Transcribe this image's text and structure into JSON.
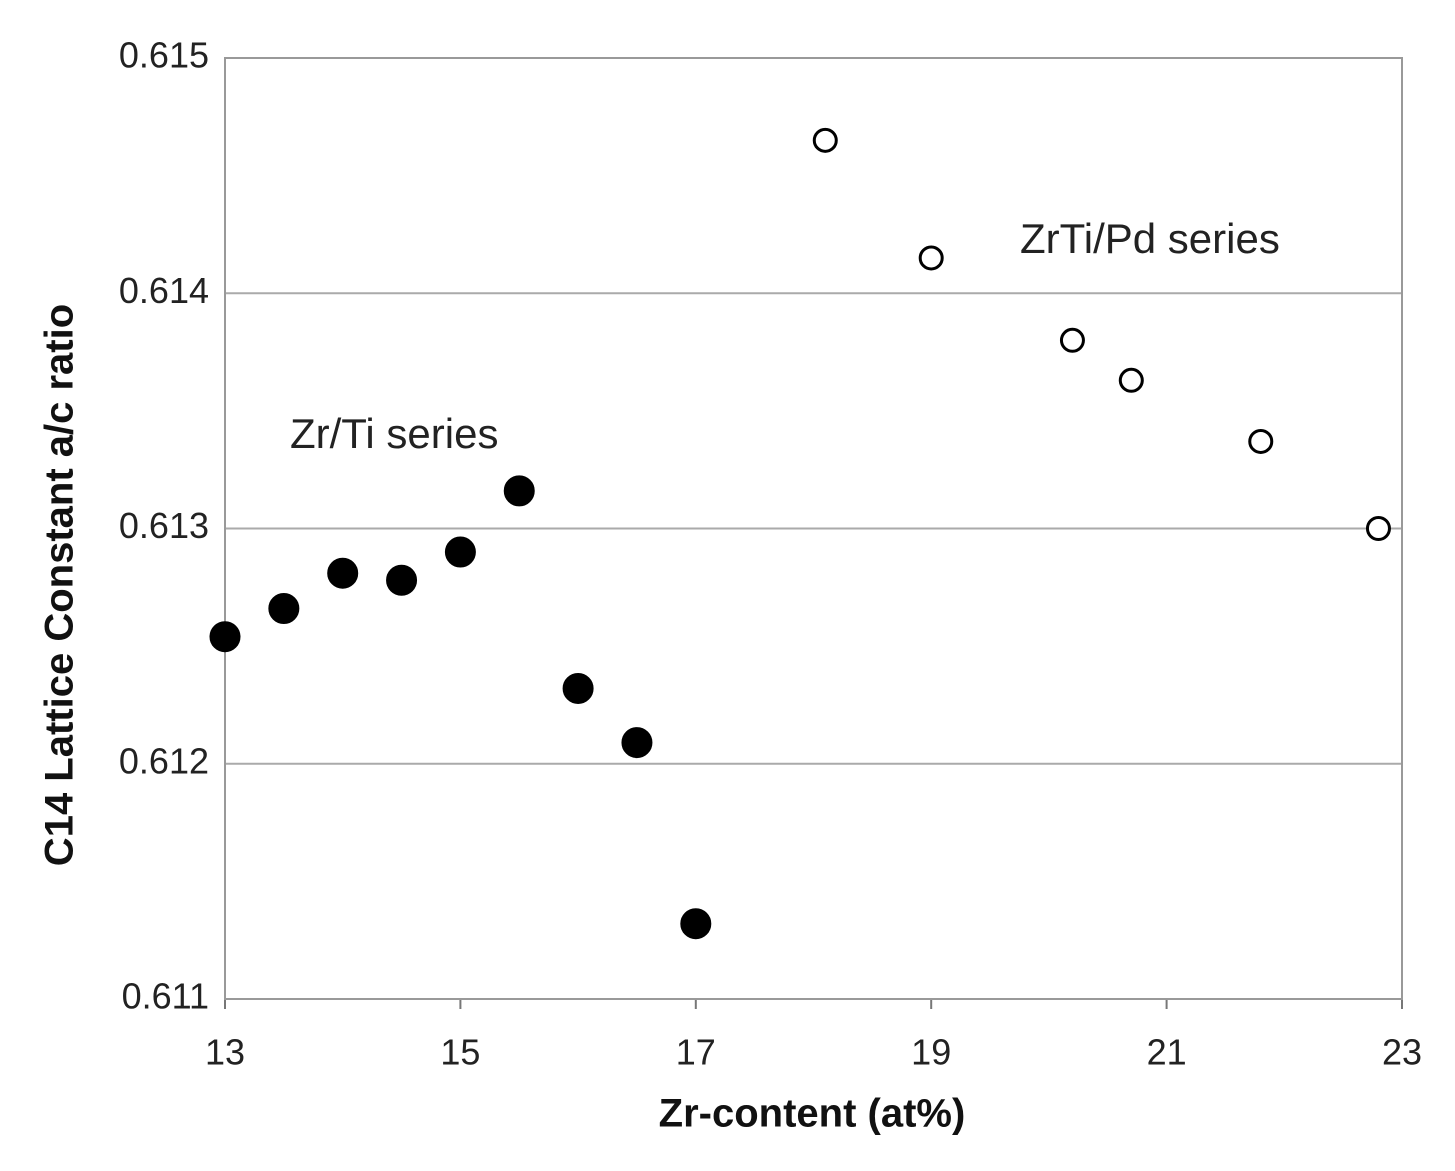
{
  "chart_data": {
    "type": "scatter",
    "x_label": "Zr-content (at%)",
    "y_label": "C14 Lattice Constant a/c ratio",
    "xlim": [
      13,
      23
    ],
    "xticks": [
      13,
      15,
      17,
      19,
      21,
      23
    ],
    "ylim": [
      0.611,
      0.615
    ],
    "yticks": [
      0.611,
      0.612,
      0.613,
      0.614,
      0.615
    ],
    "grid": true,
    "series": [
      {
        "name": "Zr/Ti series",
        "color": "#000000",
        "marker_fill": true,
        "x": [
          13,
          13.5,
          14,
          14.5,
          15,
          15.5,
          16,
          16.5,
          17
        ],
        "values": [
          0.61254,
          0.61266,
          0.61281,
          0.61278,
          0.6129,
          0.61316,
          0.61232,
          0.61209,
          0.61132
        ]
      },
      {
        "name": "ZrTi/Pd series",
        "color": "#000000",
        "marker_fill": false,
        "x": [
          18.1,
          19.0,
          20.2,
          20.7,
          21.8,
          22.8
        ],
        "values": [
          0.61465,
          0.61415,
          0.6138,
          0.61363,
          0.61337,
          0.613
        ]
      }
    ]
  }
}
